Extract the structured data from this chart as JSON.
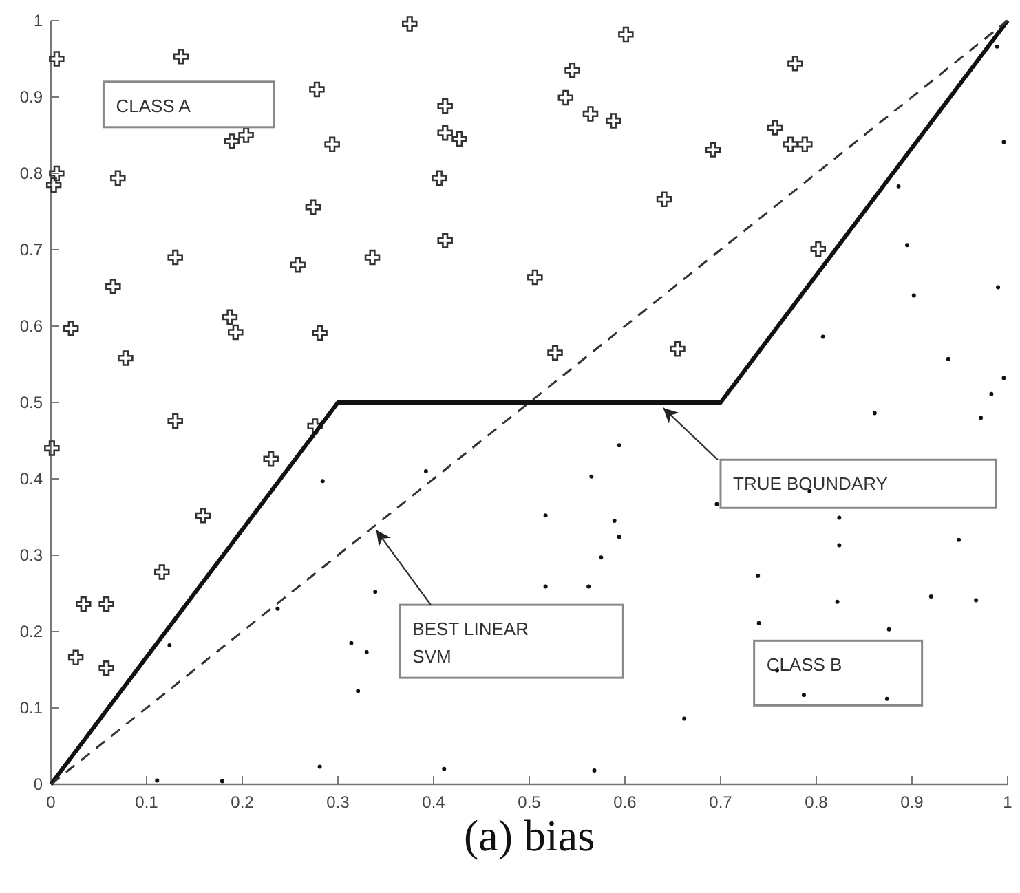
{
  "chart_data": {
    "type": "scatter",
    "title": "(a) bias",
    "xlim": [
      0,
      1
    ],
    "ylim": [
      0,
      1
    ],
    "xticks": [
      0,
      0.1,
      0.2,
      0.3,
      0.4,
      0.5,
      0.6,
      0.7,
      0.8,
      0.9,
      1
    ],
    "yticks": [
      0,
      0.1,
      0.2,
      0.3,
      0.4,
      0.5,
      0.6,
      0.7,
      0.8,
      0.9,
      1
    ],
    "series": [
      {
        "marker": "cross",
        "color": "#333333",
        "x": [
          0.001,
          0.006,
          0.006,
          0.003,
          0.021,
          0.026,
          0.034,
          0.058,
          0.058,
          0.065,
          0.07,
          0.078,
          0.116,
          0.13,
          0.13,
          0.136,
          0.159,
          0.189,
          0.187,
          0.193,
          0.204,
          0.23,
          0.258,
          0.274,
          0.278,
          0.276,
          0.281,
          0.294,
          0.336,
          0.375,
          0.406,
          0.412,
          0.412,
          0.427,
          0.412,
          0.601,
          0.545,
          0.538,
          0.564,
          0.588,
          0.692,
          0.641,
          0.506,
          0.527,
          0.655,
          0.802,
          0.757,
          0.773,
          0.788,
          0.778
        ],
        "values": [
          0.44,
          0.95,
          0.8,
          0.785,
          0.597,
          0.166,
          0.236,
          0.236,
          0.152,
          0.652,
          0.794,
          0.558,
          0.278,
          0.69,
          0.476,
          0.953,
          0.352,
          0.842,
          0.612,
          0.592,
          0.85,
          0.426,
          0.68,
          0.756,
          0.91,
          0.469,
          0.591,
          0.838,
          0.69,
          0.996,
          0.794,
          0.888,
          0.853,
          0.845,
          0.712,
          0.982,
          0.935,
          0.899,
          0.878,
          0.869,
          0.831,
          0.766,
          0.664,
          0.565,
          0.57,
          0.701,
          0.86,
          0.838,
          0.838,
          0.944
        ]
      },
      {
        "marker": "circle",
        "color": "#111111",
        "x": [
          0.989,
          0.996,
          0.886,
          0.895,
          0.902,
          0.99,
          0.807,
          0.938,
          0.996,
          0.983,
          0.861,
          0.972,
          0.594,
          0.565,
          0.517,
          0.589,
          0.594,
          0.575,
          0.517,
          0.562,
          0.662,
          0.568,
          0.696,
          0.793,
          0.824,
          0.824,
          0.949,
          0.739,
          0.822,
          0.92,
          0.967,
          0.74,
          0.876,
          0.759,
          0.787,
          0.874,
          0.124,
          0.111,
          0.179,
          0.284,
          0.237,
          0.339,
          0.314,
          0.33,
          0.321,
          0.281,
          0.411,
          0.392
        ],
        "values": [
          0.966,
          0.841,
          0.783,
          0.706,
          0.64,
          0.651,
          0.586,
          0.557,
          0.532,
          0.511,
          0.486,
          0.48,
          0.444,
          0.403,
          0.352,
          0.345,
          0.324,
          0.297,
          0.259,
          0.259,
          0.086,
          0.018,
          0.367,
          0.384,
          0.349,
          0.313,
          0.32,
          0.273,
          0.239,
          0.246,
          0.241,
          0.211,
          0.203,
          0.149,
          0.117,
          0.112,
          0.182,
          0.005,
          0.004,
          0.397,
          0.23,
          0.252,
          0.185,
          0.173,
          0.122,
          0.023,
          0.02,
          0.41
        ]
      },
      {
        "type": "line",
        "line_style": "solid",
        "color": "#111111",
        "x": [
          0,
          0.3,
          0.7,
          1
        ],
        "values": [
          0,
          0.5,
          0.5,
          1
        ]
      },
      {
        "type": "line",
        "line_style": "dashed",
        "color": "#333333",
        "x": [
          0,
          1
        ],
        "values": [
          0,
          1
        ]
      }
    ],
    "annotations": [
      "CLASS A",
      {
        "text": "TRUE BOUNDARY",
        "x": 0.64,
        "y": 0.5
      },
      {
        "text": "BEST LINEAR\nSVM",
        "x": 0.34,
        "y": 0.34
      },
      "CLASS B"
    ]
  }
}
